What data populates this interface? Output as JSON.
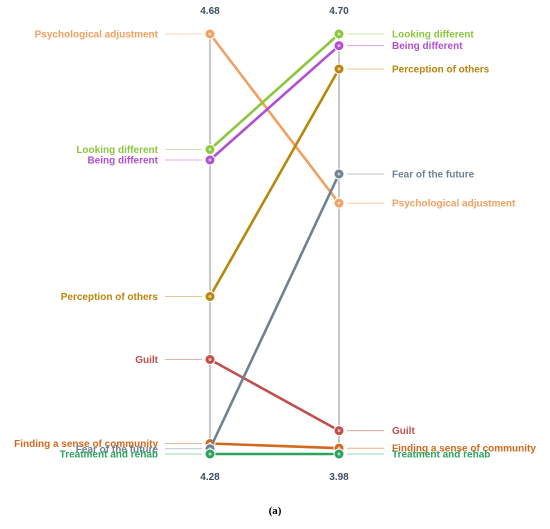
{
  "chart_data": {
    "type": "line",
    "subtype": "slope",
    "caption": "(a)",
    "left_axis": {
      "top_label": "4.68",
      "bottom_label": "4.28"
    },
    "right_axis": {
      "top_label": "4.70",
      "bottom_label": "3.98"
    },
    "series": [
      {
        "name": "Psychological adjustment",
        "color": "#f0a060",
        "left": 4.68,
        "right": 4.41
      },
      {
        "name": "Looking different",
        "color": "#8cc63f",
        "left": 4.57,
        "right": 4.7
      },
      {
        "name": "Being different",
        "color": "#b24fcf",
        "left": 4.56,
        "right": 4.68
      },
      {
        "name": "Perception of others",
        "color": "#b8860b",
        "left": 4.43,
        "right": 4.64
      },
      {
        "name": "Guilt",
        "color": "#c0504d",
        "left": 4.37,
        "right": 4.02
      },
      {
        "name": "Finding a sense of community",
        "color": "#d2691e",
        "left": 4.29,
        "right": 3.99
      },
      {
        "name": "Fear of the future",
        "color": "#6f8192",
        "left": 4.285,
        "right": 4.46
      },
      {
        "name": "Treatment and rehab",
        "color": "#2ca25f",
        "left": 4.28,
        "right": 3.98
      }
    ]
  }
}
